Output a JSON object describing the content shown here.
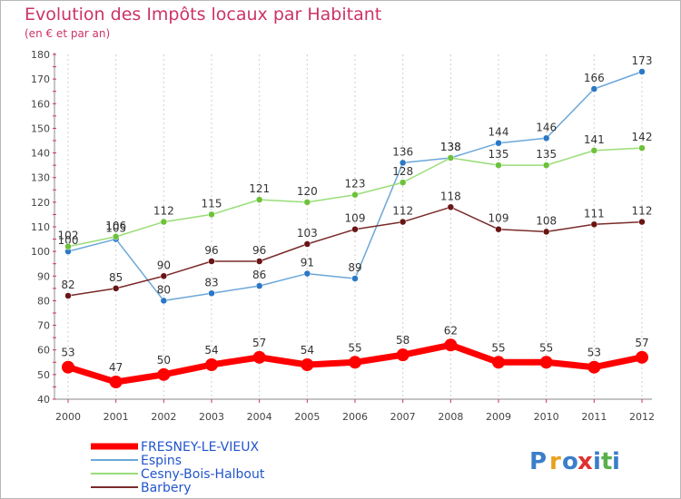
{
  "chart_data": {
    "type": "line",
    "title": "Evolution des Impôts locaux par Habitant",
    "subtitle": "(en € et par an)",
    "x": [
      "2000",
      "2001",
      "2002",
      "2003",
      "2004",
      "2005",
      "2006",
      "2007",
      "2008",
      "2009",
      "2010",
      "2011",
      "2012"
    ],
    "ylim": [
      40,
      180
    ],
    "yticks": [
      "40",
      "50",
      "60",
      "70",
      "80",
      "90",
      "100",
      "110",
      "120",
      "130",
      "140",
      "150",
      "160",
      "170",
      "180"
    ],
    "grid": "vertical dashed",
    "legend_position": "bottom-left",
    "series": [
      {
        "name": "FRESNEY-LE-VIEUX",
        "color": "#ff0000",
        "values": [
          53,
          47,
          50,
          54,
          57,
          54,
          55,
          58,
          62,
          55,
          55,
          53,
          57
        ],
        "labels": [
          "53",
          "47",
          "50",
          "54",
          "57",
          "54",
          "55",
          "58",
          "62",
          "55",
          "55",
          "53",
          "57"
        ]
      },
      {
        "name": "Espins",
        "color": "#6ba7d8",
        "values": [
          100,
          105,
          80,
          83,
          86,
          91,
          89,
          136,
          138,
          144,
          146,
          166,
          173
        ],
        "labels": [
          "100",
          "105",
          "80",
          "83",
          "86",
          "91",
          "89",
          "136",
          "138",
          "144",
          "146",
          "166",
          "173"
        ]
      },
      {
        "name": "Cesny-Bois-Halbout",
        "color": "#99dd77",
        "values": [
          102,
          106,
          112,
          115,
          121,
          120,
          123,
          128,
          138,
          135,
          135,
          141,
          142
        ],
        "labels": [
          "102",
          "106",
          "112",
          "115",
          "121",
          "120",
          "123",
          "128",
          "138",
          "135",
          "135",
          "141",
          "142"
        ]
      },
      {
        "name": "Barbery",
        "color": "#7a2a2a",
        "values": [
          82,
          85,
          90,
          96,
          96,
          103,
          109,
          112,
          118,
          109,
          108,
          111,
          112
        ],
        "labels": [
          "82",
          "85",
          "90",
          "96",
          "96",
          "103",
          "109",
          "112",
          "118",
          "109",
          "108",
          "111",
          "112"
        ]
      }
    ]
  },
  "brand": {
    "text": "Proxiti",
    "letters": [
      "P",
      "r",
      "o",
      "x",
      "i",
      "t",
      "i"
    ],
    "colors": [
      "#3b7ec9",
      "#e8a020",
      "#3b7ec9",
      "#e03030",
      "#3b7ec9",
      "#5ab04a",
      "#3b7ec9"
    ]
  }
}
